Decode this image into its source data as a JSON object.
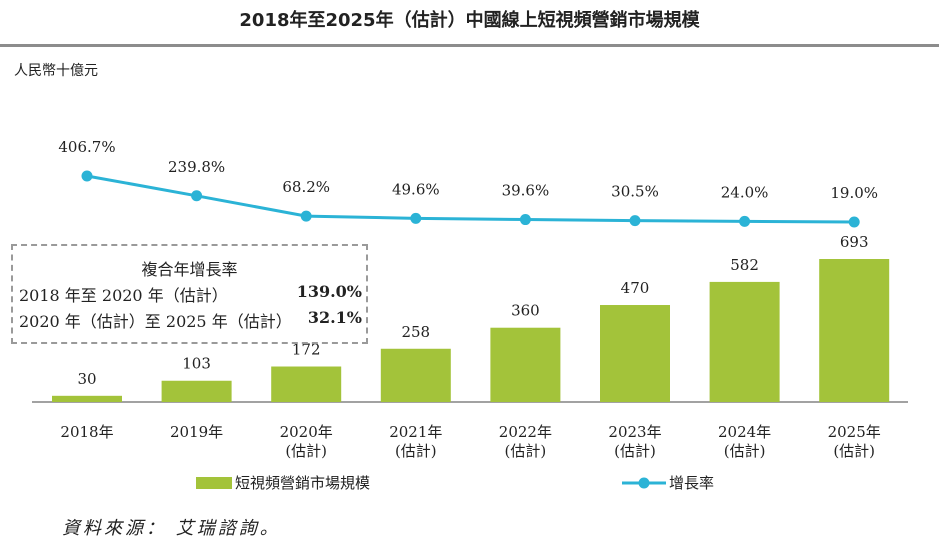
{
  "title": "2018年至2025年（估計）中國線上短視頻營銷市場規模",
  "unit": "人民幣十億元",
  "chart_data": {
    "type": "bar+line",
    "categories": [
      "2018年",
      "2019年",
      "2020年\n(估計)",
      "2021年\n(估計)",
      "2022年\n(估計)",
      "2023年\n(估計)",
      "2024年\n(估計)",
      "2025年\n(估計)"
    ],
    "series": [
      {
        "name": "短視頻營銷市場規模",
        "type": "bar",
        "color": "#a3c33a",
        "values": [
          30,
          103,
          172,
          258,
          360,
          470,
          582,
          693
        ],
        "labels": [
          "30",
          "103",
          "172",
          "258",
          "360",
          "470",
          "582",
          "693"
        ]
      },
      {
        "name": "增長率",
        "type": "line",
        "color": "#2bb3d6",
        "values": [
          406.7,
          239.8,
          68.2,
          49.6,
          39.6,
          30.5,
          24.0,
          19.0
        ],
        "labels": [
          "406.7%",
          "239.8%",
          "68.2%",
          "49.6%",
          "39.6%",
          "30.5%",
          "24.0%",
          "19.0%"
        ]
      }
    ],
    "legend_position": "bottom",
    "grid": false
  },
  "cagr": {
    "heading": "複合年增長率",
    "rows": [
      {
        "label": "2018 年至 2020 年（估計）",
        "value": "139.0%"
      },
      {
        "label": "2020 年（估計）至 2025 年（估計）",
        "value": "32.1%"
      }
    ]
  },
  "source": "資料來源： 艾瑞諮詢。"
}
